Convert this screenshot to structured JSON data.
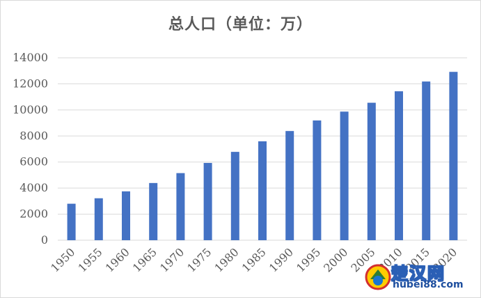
{
  "chart_data": {
    "type": "bar",
    "title": "总人口（单位：万）",
    "categories": [
      "1950",
      "1955",
      "1960",
      "1965",
      "1970",
      "1975",
      "1980",
      "1985",
      "1990",
      "1995",
      "2000",
      "2005",
      "2010",
      "2015",
      "2020"
    ],
    "values": [
      2800,
      3220,
      3750,
      4390,
      5150,
      5930,
      6780,
      7590,
      8380,
      9190,
      9870,
      10550,
      11430,
      12180,
      12920
    ],
    "ylim": [
      0,
      14000
    ],
    "yticks": [
      0,
      2000,
      4000,
      6000,
      8000,
      10000,
      12000,
      14000
    ],
    "xlabel": "",
    "ylabel": "",
    "grid": true,
    "bar_color": "#4472c4",
    "grid_color": "#d9d9d9"
  },
  "watermark": {
    "name": "楚汉网",
    "url": "hubei88.com"
  }
}
